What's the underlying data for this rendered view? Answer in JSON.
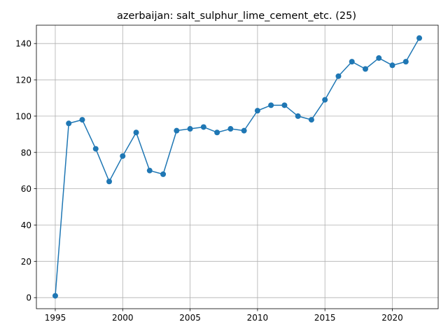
{
  "chart_data": {
    "type": "line",
    "title": "azerbaijan: salt_sulphur_lime_cement_etc. (25)",
    "xlabel": "",
    "ylabel": "",
    "x": [
      1995,
      1996,
      1997,
      1998,
      1999,
      2000,
      2001,
      2002,
      2003,
      2004,
      2005,
      2006,
      2007,
      2008,
      2009,
      2010,
      2011,
      2012,
      2013,
      2014,
      2015,
      2016,
      2017,
      2018,
      2019,
      2020,
      2021,
      2022
    ],
    "series": [
      {
        "values": [
          1,
          96,
          98,
          82,
          64,
          78,
          91,
          70,
          68,
          92,
          93,
          94,
          91,
          93,
          92,
          103,
          106,
          106,
          100,
          98,
          109,
          122,
          130,
          126,
          132,
          128,
          130,
          143
        ],
        "color": "#1f77b4",
        "marker": "circle"
      }
    ],
    "xlim": [
      1993.6,
      2023.4
    ],
    "ylim": [
      -6.1,
      150.1
    ],
    "xticks": [
      1995,
      2000,
      2005,
      2010,
      2015,
      2020
    ],
    "yticks": [
      0,
      20,
      40,
      60,
      80,
      100,
      120,
      140
    ],
    "grid": true,
    "legend": "none",
    "colors": {
      "grid": "#b0b0b0",
      "axes": "#000000",
      "background": "#ffffff"
    }
  }
}
